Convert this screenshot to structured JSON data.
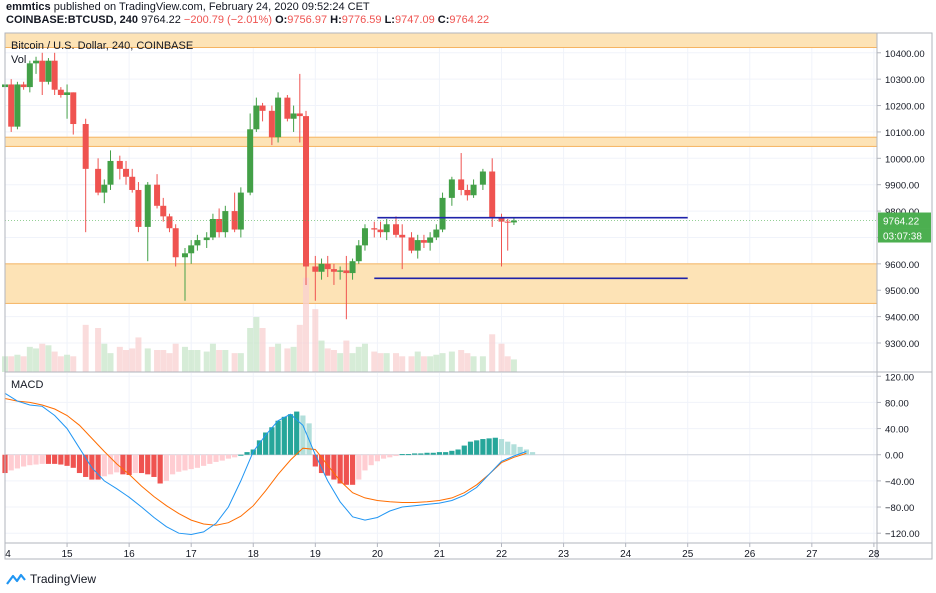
{
  "header": {
    "publisher": "emmtics",
    "published_text": "published on TradingView.com, February 24, 2020 09:52:24 CET",
    "symbol": "COINBASE:BTCUSD, 240",
    "last": "9764.22",
    "change": "−200.79 (−2.01%)",
    "o_label": "O:",
    "o_value": "9756.97",
    "h_label": "H:",
    "h_value": "9776.59",
    "l_label": "L:",
    "l_value": "9747.09",
    "c_label": "C:",
    "c_value": "9764.22"
  },
  "legend": {
    "title": "Bitcoin / U.S. Dollar, 240, COINBASE",
    "vol": "Vol",
    "macd": "MACD"
  },
  "price_badge": {
    "price": "9764.22",
    "countdown": "03:07:38"
  },
  "footer": {
    "brand": "TradingView"
  },
  "colors": {
    "up": "#26a69a",
    "down": "#ef5350",
    "candle_up": "#43a047",
    "zone": "#fde3b6",
    "zone_border": "#f5b461",
    "level": "#1e22aa",
    "macd_line": "#2196f3",
    "signal_line": "#ff6d00",
    "badge": "#4caf50",
    "grid": "#f0f3fa",
    "axis_text": "#131722"
  },
  "chart_data": [
    {
      "type": "candlestick",
      "title": "Bitcoin / U.S. Dollar, 240, COINBASE",
      "y_ticks": [
        9300,
        9400,
        9500,
        9600,
        9700,
        9800,
        9900,
        10000,
        10100,
        10200,
        10300,
        10400
      ],
      "y_tick_labels": [
        "9300.00",
        "9400.00",
        "9500.00",
        "9600.00",
        "9700.00",
        "9800.00",
        "9900.00",
        "10000.00",
        "10100.00",
        "10200.00",
        "10300.00",
        "10400.00"
      ],
      "ylim": [
        9190,
        10475
      ],
      "x_tick_labels": [
        "4",
        "15",
        "16",
        "17",
        "18",
        "19",
        "20",
        "21",
        "22",
        "23",
        "24",
        "25",
        "26",
        "27",
        "28"
      ],
      "x_ticks": [
        0,
        1,
        2,
        3,
        4,
        5,
        6,
        7,
        8,
        9,
        10,
        11,
        12,
        13,
        14
      ],
      "xlim": [
        0,
        14.05
      ],
      "zones": [
        {
          "from": 10420,
          "to": 10475
        },
        {
          "from": 10045,
          "to": 10080
        },
        {
          "from": 9450,
          "to": 9600
        }
      ],
      "levels": [
        {
          "price": 9775,
          "x_start": 6.0,
          "x_end": 11.0
        },
        {
          "price": 9545,
          "x_start": 5.95,
          "x_end": 11.0
        }
      ],
      "last_price": 9764.22,
      "candles": [
        {
          "x": 0.0,
          "o": 10270,
          "h": 10290,
          "l": 10200,
          "c": 10280
        },
        {
          "x": 0.1,
          "o": 10280,
          "h": 10300,
          "l": 10100,
          "c": 10120
        },
        {
          "x": 0.2,
          "o": 10120,
          "h": 10290,
          "l": 10110,
          "c": 10280
        },
        {
          "x": 0.3,
          "o": 10280,
          "h": 10290,
          "l": 10260,
          "c": 10270
        },
        {
          "x": 0.4,
          "o": 10270,
          "h": 10370,
          "l": 10250,
          "c": 10360
        },
        {
          "x": 0.5,
          "o": 10360,
          "h": 10385,
          "l": 10320,
          "c": 10370
        },
        {
          "x": 0.6,
          "o": 10370,
          "h": 10400,
          "l": 10240,
          "c": 10290
        },
        {
          "x": 0.7,
          "o": 10290,
          "h": 10380,
          "l": 10280,
          "c": 10370
        },
        {
          "x": 0.8,
          "o": 10370,
          "h": 10400,
          "l": 10240,
          "c": 10260
        },
        {
          "x": 0.9,
          "o": 10260,
          "h": 10270,
          "l": 10230,
          "c": 10240
        },
        {
          "x": 1.0,
          "o": 10240,
          "h": 10280,
          "l": 10150,
          "c": 10250
        },
        {
          "x": 1.1,
          "o": 10250,
          "h": 10250,
          "l": 10090,
          "c": 10130
        },
        {
          "x": 1.3,
          "o": 10130,
          "h": 10150,
          "l": 9720,
          "c": 9960
        },
        {
          "x": 1.5,
          "o": 9960,
          "h": 10000,
          "l": 9860,
          "c": 9870
        },
        {
          "x": 1.6,
          "o": 9870,
          "h": 9920,
          "l": 9830,
          "c": 9900
        },
        {
          "x": 1.7,
          "o": 9900,
          "h": 10030,
          "l": 9880,
          "c": 9990
        },
        {
          "x": 1.85,
          "o": 9990,
          "h": 10010,
          "l": 9920,
          "c": 9960
        },
        {
          "x": 1.95,
          "o": 9960,
          "h": 9990,
          "l": 9900,
          "c": 9930
        },
        {
          "x": 2.05,
          "o": 9930,
          "h": 9960,
          "l": 9870,
          "c": 9880
        },
        {
          "x": 2.15,
          "o": 9880,
          "h": 9910,
          "l": 9720,
          "c": 9740
        },
        {
          "x": 2.3,
          "o": 9740,
          "h": 9910,
          "l": 9610,
          "c": 9900
        },
        {
          "x": 2.45,
          "o": 9900,
          "h": 9940,
          "l": 9810,
          "c": 9820
        },
        {
          "x": 2.55,
          "o": 9820,
          "h": 9850,
          "l": 9760,
          "c": 9780
        },
        {
          "x": 2.65,
          "o": 9780,
          "h": 9790,
          "l": 9720,
          "c": 9735
        },
        {
          "x": 2.75,
          "o": 9735,
          "h": 9750,
          "l": 9590,
          "c": 9625
        },
        {
          "x": 2.9,
          "o": 9625,
          "h": 9660,
          "l": 9460,
          "c": 9640
        },
        {
          "x": 3.0,
          "o": 9640,
          "h": 9690,
          "l": 9600,
          "c": 9670
        },
        {
          "x": 3.1,
          "o": 9670,
          "h": 9710,
          "l": 9650,
          "c": 9690
        },
        {
          "x": 3.25,
          "o": 9690,
          "h": 9720,
          "l": 9660,
          "c": 9700
        },
        {
          "x": 3.35,
          "o": 9700,
          "h": 9790,
          "l": 9690,
          "c": 9770
        },
        {
          "x": 3.45,
          "o": 9770,
          "h": 9810,
          "l": 9700,
          "c": 9720
        },
        {
          "x": 3.55,
          "o": 9720,
          "h": 9820,
          "l": 9700,
          "c": 9800
        },
        {
          "x": 3.7,
          "o": 9800,
          "h": 9870,
          "l": 9720,
          "c": 9730
        },
        {
          "x": 3.8,
          "o": 9730,
          "h": 9890,
          "l": 9700,
          "c": 9870
        },
        {
          "x": 3.95,
          "o": 9870,
          "h": 10170,
          "l": 9860,
          "c": 10110
        },
        {
          "x": 4.05,
          "o": 10110,
          "h": 10230,
          "l": 10100,
          "c": 10200
        },
        {
          "x": 4.15,
          "o": 10200,
          "h": 10210,
          "l": 10140,
          "c": 10180
        },
        {
          "x": 4.3,
          "o": 10180,
          "h": 10200,
          "l": 10050,
          "c": 10080
        },
        {
          "x": 4.4,
          "o": 10080,
          "h": 10250,
          "l": 10060,
          "c": 10230
        },
        {
          "x": 4.55,
          "o": 10230,
          "h": 10240,
          "l": 10140,
          "c": 10150
        },
        {
          "x": 4.65,
          "o": 10150,
          "h": 10200,
          "l": 10100,
          "c": 10170
        },
        {
          "x": 4.75,
          "o": 10170,
          "h": 10320,
          "l": 10060,
          "c": 10160
        },
        {
          "x": 4.85,
          "o": 10160,
          "h": 10180,
          "l": 9520,
          "c": 9590
        },
        {
          "x": 5.0,
          "o": 9590,
          "h": 9630,
          "l": 9460,
          "c": 9570
        },
        {
          "x": 5.1,
          "o": 9570,
          "h": 9620,
          "l": 9540,
          "c": 9600
        },
        {
          "x": 5.2,
          "o": 9600,
          "h": 9630,
          "l": 9550,
          "c": 9580
        },
        {
          "x": 5.3,
          "o": 9580,
          "h": 9600,
          "l": 9520,
          "c": 9570
        },
        {
          "x": 5.4,
          "o": 9570,
          "h": 9590,
          "l": 9540,
          "c": 9575
        },
        {
          "x": 5.5,
          "o": 9575,
          "h": 9630,
          "l": 9390,
          "c": 9565
        },
        {
          "x": 5.6,
          "o": 9565,
          "h": 9620,
          "l": 9540,
          "c": 9610
        },
        {
          "x": 5.7,
          "o": 9610,
          "h": 9690,
          "l": 9600,
          "c": 9670
        },
        {
          "x": 5.8,
          "o": 9670,
          "h": 9750,
          "l": 9650,
          "c": 9735
        },
        {
          "x": 5.95,
          "o": 9735,
          "h": 9760,
          "l": 9700,
          "c": 9730
        },
        {
          "x": 6.05,
          "o": 9730,
          "h": 9760,
          "l": 9700,
          "c": 9720
        },
        {
          "x": 6.15,
          "o": 9720,
          "h": 9770,
          "l": 9690,
          "c": 9750
        },
        {
          "x": 6.3,
          "o": 9750,
          "h": 9780,
          "l": 9700,
          "c": 9710
        },
        {
          "x": 6.4,
          "o": 9710,
          "h": 9750,
          "l": 9580,
          "c": 9700
        },
        {
          "x": 6.55,
          "o": 9700,
          "h": 9720,
          "l": 9640,
          "c": 9650
        },
        {
          "x": 6.65,
          "o": 9650,
          "h": 9710,
          "l": 9620,
          "c": 9690
        },
        {
          "x": 6.75,
          "o": 9690,
          "h": 9710,
          "l": 9660,
          "c": 9680
        },
        {
          "x": 6.85,
          "o": 9680,
          "h": 9720,
          "l": 9650,
          "c": 9700
        },
        {
          "x": 6.95,
          "o": 9700,
          "h": 9750,
          "l": 9690,
          "c": 9730
        },
        {
          "x": 7.05,
          "o": 9730,
          "h": 9870,
          "l": 9720,
          "c": 9850
        },
        {
          "x": 7.2,
          "o": 9850,
          "h": 9930,
          "l": 9820,
          "c": 9920
        },
        {
          "x": 7.35,
          "o": 9920,
          "h": 10020,
          "l": 9860,
          "c": 9880
        },
        {
          "x": 7.45,
          "o": 9880,
          "h": 9900,
          "l": 9840,
          "c": 9860
        },
        {
          "x": 7.55,
          "o": 9860,
          "h": 9920,
          "l": 9850,
          "c": 9900
        },
        {
          "x": 7.7,
          "o": 9900,
          "h": 9960,
          "l": 9880,
          "c": 9950
        },
        {
          "x": 7.85,
          "o": 9950,
          "h": 10000,
          "l": 9740,
          "c": 9775
        },
        {
          "x": 8.0,
          "o": 9775,
          "h": 9790,
          "l": 9590,
          "c": 9760
        },
        {
          "x": 8.1,
          "o": 9760,
          "h": 9770,
          "l": 9650,
          "c": 9756
        },
        {
          "x": 8.2,
          "o": 9756.97,
          "h": 9776.59,
          "l": 9747.09,
          "c": 9764.22
        }
      ]
    },
    {
      "type": "bar",
      "name": "Vol",
      "x": [
        0.0,
        0.1,
        0.2,
        0.3,
        0.4,
        0.5,
        0.6,
        0.7,
        0.8,
        0.9,
        1.0,
        1.1,
        1.3,
        1.5,
        1.6,
        1.7,
        1.85,
        1.95,
        2.05,
        2.15,
        2.3,
        2.45,
        2.55,
        2.65,
        2.75,
        2.9,
        3.0,
        3.1,
        3.25,
        3.35,
        3.45,
        3.55,
        3.7,
        3.8,
        3.95,
        4.05,
        4.15,
        4.3,
        4.4,
        4.55,
        4.65,
        4.75,
        4.85,
        5.0,
        5.1,
        5.2,
        5.3,
        5.4,
        5.5,
        5.6,
        5.7,
        5.8,
        5.95,
        6.05,
        6.15,
        6.3,
        6.4,
        6.55,
        6.65,
        6.75,
        6.85,
        6.95,
        7.05,
        7.2,
        7.35,
        7.45,
        7.55,
        7.7,
        7.85,
        8.0,
        8.1,
        8.2
      ],
      "values": [
        10,
        10,
        11,
        10,
        16,
        15,
        18,
        17,
        13,
        10,
        11,
        10,
        30,
        28,
        18,
        12,
        16,
        14,
        15,
        22,
        15,
        14,
        14,
        12,
        18,
        16,
        14,
        14,
        13,
        18,
        14,
        14,
        12,
        12,
        28,
        35,
        28,
        16,
        18,
        15,
        16,
        30,
        60,
        40,
        20,
        15,
        14,
        12,
        20,
        12,
        16,
        18,
        13,
        12,
        12,
        12,
        10,
        10,
        13,
        10,
        10,
        11,
        12,
        13,
        14,
        12,
        10,
        10,
        24,
        18,
        10,
        8
      ],
      "ylim": [
        0,
        70
      ]
    },
    {
      "type": "macd",
      "name": "MACD",
      "y_ticks": [
        -120,
        -80,
        -40,
        0,
        40,
        80,
        120
      ],
      "y_tick_labels": [
        "−120.00",
        "−80.00",
        "−40.00",
        "0.00",
        "40.00",
        "80.00",
        "120.00"
      ],
      "ylim": [
        -135,
        125
      ],
      "histogram_x": [
        0.0,
        0.1,
        0.2,
        0.3,
        0.4,
        0.5,
        0.6,
        0.7,
        0.8,
        0.9,
        1.0,
        1.1,
        1.2,
        1.3,
        1.4,
        1.5,
        1.6,
        1.7,
        1.8,
        1.9,
        2.0,
        2.1,
        2.2,
        2.3,
        2.4,
        2.5,
        2.6,
        2.7,
        2.8,
        2.9,
        3.0,
        3.1,
        3.2,
        3.3,
        3.4,
        3.5,
        3.6,
        3.7,
        3.8,
        3.9,
        4.0,
        4.1,
        4.2,
        4.3,
        4.4,
        4.5,
        4.6,
        4.7,
        4.8,
        4.9,
        5.0,
        5.1,
        5.2,
        5.3,
        5.4,
        5.5,
        5.6,
        5.7,
        5.8,
        5.9,
        6.0,
        6.1,
        6.2,
        6.3,
        6.4,
        6.5,
        6.6,
        6.7,
        6.8,
        6.9,
        7.0,
        7.1,
        7.2,
        7.3,
        7.4,
        7.5,
        7.6,
        7.7,
        7.8,
        7.9,
        8.0,
        8.1,
        8.2,
        8.3,
        8.4,
        8.5
      ],
      "histogram": [
        -28,
        -24,
        -21,
        -18,
        -16,
        -15,
        -14,
        -14,
        -14,
        -15,
        -17,
        -20,
        -28,
        -34,
        -38,
        -38,
        -33,
        -30,
        -27,
        -30,
        -31,
        -28,
        -28,
        -30,
        -34,
        -44,
        -40,
        -30,
        -26,
        -24,
        -22,
        -20,
        -17,
        -14,
        -11,
        -9,
        -6,
        -4,
        0,
        4,
        8,
        22,
        34,
        42,
        52,
        58,
        62,
        66,
        60,
        48,
        -18,
        -28,
        -32,
        -38,
        -44,
        -46,
        -46,
        -38,
        -24,
        -16,
        -10,
        -6,
        -4,
        -2,
        1,
        1,
        2,
        2,
        3,
        3,
        4,
        4,
        6,
        8,
        14,
        20,
        22,
        24,
        25,
        26,
        24,
        20,
        16,
        12,
        8,
        4
      ],
      "macd_line_x": [
        0.0,
        0.2,
        0.4,
        0.6,
        0.8,
        1.0,
        1.2,
        1.4,
        1.6,
        1.8,
        2.0,
        2.2,
        2.4,
        2.6,
        2.8,
        3.0,
        3.2,
        3.4,
        3.6,
        3.8,
        4.0,
        4.2,
        4.4,
        4.6,
        4.8,
        5.0,
        5.2,
        5.4,
        5.6,
        5.8,
        6.0,
        6.2,
        6.4,
        6.6,
        6.8,
        7.0,
        7.2,
        7.4,
        7.6,
        7.8,
        8.0,
        8.2,
        8.4
      ],
      "macd_line": [
        94,
        82,
        76,
        74,
        60,
        40,
        10,
        -20,
        -40,
        -52,
        -65,
        -80,
        -96,
        -110,
        -120,
        -122,
        -118,
        -105,
        -80,
        -40,
        5,
        30,
        52,
        62,
        45,
        0,
        -40,
        -72,
        -95,
        -100,
        -96,
        -86,
        -80,
        -78,
        -76,
        -74,
        -70,
        -62,
        -50,
        -30,
        -10,
        -2,
        5
      ],
      "signal_line": [
        86,
        82,
        80,
        76,
        70,
        60,
        45,
        25,
        5,
        -14,
        -30,
        -48,
        -64,
        -78,
        -90,
        -100,
        -106,
        -108,
        -104,
        -94,
        -78,
        -55,
        -30,
        -8,
        10,
        8,
        -16,
        -40,
        -58,
        -66,
        -70,
        -72,
        -73,
        -73,
        -72,
        -70,
        -66,
        -58,
        -46,
        -30,
        -12,
        -4,
        2
      ],
      "last_macd_x": 8.45
    }
  ]
}
